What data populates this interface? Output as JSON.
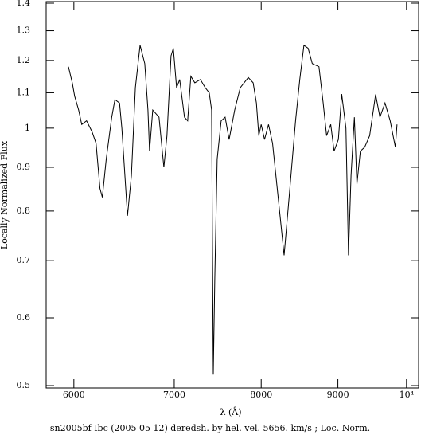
{
  "chart_data": {
    "type": "line",
    "caption": "sn2005bf Ibc (2005 05 12) deredsh. by hel. vel.  5656. km/s ;  Loc. Norm.",
    "xlabel": "λ (Å)",
    "ylabel": "Locally Normalized Flux",
    "xscale": "log",
    "yscale": "log",
    "xlim": [
      5750,
      10200
    ],
    "ylim": [
      0.5,
      1.4
    ],
    "xticks": [
      6000,
      7000,
      8000,
      9000,
      {
        "value": 10000,
        "label": "10⁴"
      }
    ],
    "yticks": [
      0.5,
      0.6,
      0.7,
      0.8,
      0.9,
      1,
      1.1,
      1.2,
      1.3,
      1.4
    ],
    "grid": false,
    "series": [
      {
        "name": "sn2005bf",
        "color": "#000000",
        "x": [
          5950,
          5985,
          6007,
          6044,
          6073,
          6118,
          6170,
          6208,
          6245,
          6268,
          6306,
          6359,
          6390,
          6436,
          6459,
          6515,
          6554,
          6594,
          6642,
          6690,
          6723,
          6739,
          6772,
          6838,
          6889,
          6922,
          6965,
          6990,
          7025,
          7059,
          7111,
          7146,
          7181,
          7225,
          7287,
          7341,
          7386,
          7413,
          7432,
          7450,
          7477,
          7523,
          7569,
          7615,
          7681,
          7747,
          7843,
          7902,
          7941,
          7971,
          8000,
          8041,
          8090,
          8141,
          8223,
          8286,
          8350,
          8434,
          8488,
          8543,
          8598,
          8653,
          8742,
          8799,
          8845,
          8902,
          8948,
          9007,
          9053,
          9112,
          9148,
          9183,
          9231,
          9267,
          9316,
          9377,
          9450,
          9537,
          9600,
          9676,
          9753,
          9830,
          9856
        ],
        "values": [
          1.18,
          1.13,
          1.09,
          1.05,
          1.01,
          1.02,
          0.99,
          0.96,
          0.85,
          0.83,
          0.92,
          1.03,
          1.08,
          1.07,
          1.0,
          0.79,
          0.88,
          1.115,
          1.25,
          1.19,
          1.05,
          0.94,
          1.05,
          1.03,
          0.9,
          0.98,
          1.215,
          1.24,
          1.115,
          1.14,
          1.03,
          1.02,
          1.15,
          1.13,
          1.14,
          1.115,
          1.1,
          1.05,
          0.515,
          0.667,
          0.92,
          1.02,
          1.03,
          0.97,
          1.05,
          1.115,
          1.146,
          1.13,
          1.07,
          0.98,
          1.01,
          0.97,
          1.01,
          0.96,
          0.81,
          0.71,
          0.83,
          1.02,
          1.14,
          1.25,
          1.24,
          1.19,
          1.18,
          1.07,
          0.98,
          1.01,
          0.94,
          0.97,
          1.096,
          1.0,
          0.71,
          0.88,
          1.03,
          0.86,
          0.94,
          0.95,
          0.98,
          1.095,
          1.03,
          1.07,
          1.02,
          0.95,
          1.01
        ]
      }
    ]
  }
}
